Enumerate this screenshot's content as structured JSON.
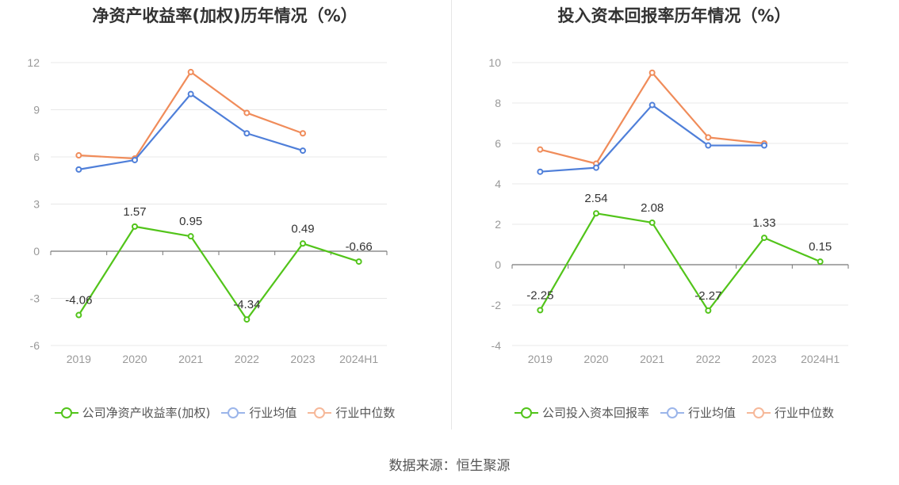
{
  "source_text": "数据来源：恒生聚源",
  "colors": {
    "company": "#52c41a",
    "avg": "#4f7fd9",
    "median": "#f08c5a",
    "axis": "#999999",
    "grid": "#e8e8e8"
  },
  "chart_data": [
    {
      "type": "line",
      "title": "净资产收益率(加权)历年情况（%）",
      "categories": [
        "2019",
        "2020",
        "2021",
        "2022",
        "2023",
        "2024H1"
      ],
      "y_ticks": [
        "12",
        "9",
        "6",
        "3",
        "0",
        "-3",
        "-6"
      ],
      "ylim": [
        -6,
        12
      ],
      "series": [
        {
          "name": "公司净资产收益率(加权)",
          "color": "#52c41a",
          "values": [
            -4.06,
            1.57,
            0.95,
            -4.34,
            0.49,
            -0.66
          ],
          "labels": [
            "-4.06",
            "1.57",
            "0.95",
            "-4.34",
            "0.49",
            "-0.66"
          ]
        },
        {
          "name": "行业均值",
          "color": "#4f7fd9",
          "values": [
            5.2,
            5.8,
            10.0,
            7.5,
            6.4,
            null
          ]
        },
        {
          "name": "行业中位数",
          "color": "#f08c5a",
          "values": [
            6.1,
            5.9,
            11.4,
            8.8,
            7.5,
            null
          ]
        }
      ]
    },
    {
      "type": "line",
      "title": "投入资本回报率历年情况（%）",
      "categories": [
        "2019",
        "2020",
        "2021",
        "2022",
        "2023",
        "2024H1"
      ],
      "y_ticks": [
        "10",
        "8",
        "6",
        "4",
        "2",
        "0",
        "-2",
        "-4"
      ],
      "ylim": [
        -4,
        10
      ],
      "series": [
        {
          "name": "公司投入资本回报率",
          "color": "#52c41a",
          "values": [
            -2.25,
            2.54,
            2.08,
            -2.27,
            1.33,
            0.15
          ],
          "labels": [
            "-2.25",
            "2.54",
            "2.08",
            "-2.27",
            "1.33",
            "0.15"
          ]
        },
        {
          "name": "行业均值",
          "color": "#4f7fd9",
          "values": [
            4.6,
            4.8,
            7.9,
            5.9,
            5.9,
            null
          ]
        },
        {
          "name": "行业中位数",
          "color": "#f08c5a",
          "values": [
            5.7,
            5.0,
            9.5,
            6.3,
            6.0,
            null
          ]
        }
      ]
    }
  ]
}
